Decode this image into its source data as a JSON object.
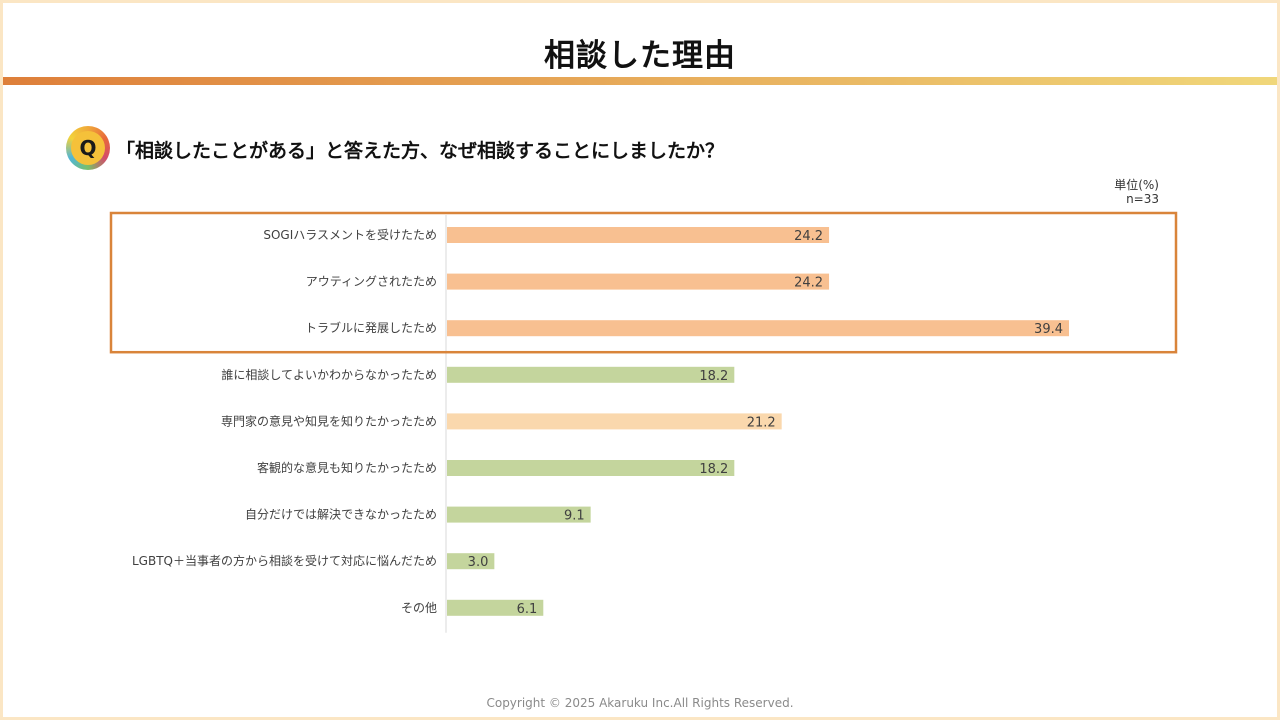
{
  "page": {
    "title": "相談した理由",
    "question_badge": "Q",
    "question": "「相談したことがある」と答えた方、なぜ相談することにしましたか？",
    "unit_label": "単位(%)",
    "sample_label": "n=33",
    "copyright": "Copyright © 2025 Akaruku Inc.All Rights Reserved."
  },
  "colors": {
    "highlight_bar": "#f8c091",
    "secondary_bar": "#fad8ad",
    "green_bar": "#c4d59d",
    "highlight_border": "#d9843a",
    "title_bar_start": "#de7f3a",
    "title_bar_end": "#f0d77a"
  },
  "chart_data": {
    "type": "bar",
    "orientation": "horizontal",
    "categories": [
      "SOGIハラスメントを受けたため",
      "アウティングされたため",
      "トラブルに発展したため",
      "誰に相談してよいかわからなかったため",
      "専門家の意見や知見を知りたかったため",
      "客観的な意見も知りたかったため",
      "自分だけでは解決できなかったため",
      "LGBTQ＋当事者の方から相談を受けて対応に悩んだため",
      "その他"
    ],
    "values": [
      24.2,
      24.2,
      39.4,
      18.2,
      21.2,
      18.2,
      9.1,
      3.0,
      6.1
    ],
    "value_labels": [
      "24.2",
      "24.2",
      "39.4",
      "18.2",
      "21.2",
      "18.2",
      "9.1",
      "3.0",
      "6.1"
    ],
    "bar_colors": [
      "#f8c091",
      "#f8c091",
      "#f8c091",
      "#c4d59d",
      "#fad8ad",
      "#c4d59d",
      "#c4d59d",
      "#c4d59d",
      "#c4d59d"
    ],
    "highlighted_categories": [
      0,
      1,
      2
    ],
    "unit": "%",
    "n": 33,
    "xlim": [
      0,
      40
    ],
    "xlabel": "",
    "ylabel": "",
    "grid": false,
    "legend": "none"
  }
}
